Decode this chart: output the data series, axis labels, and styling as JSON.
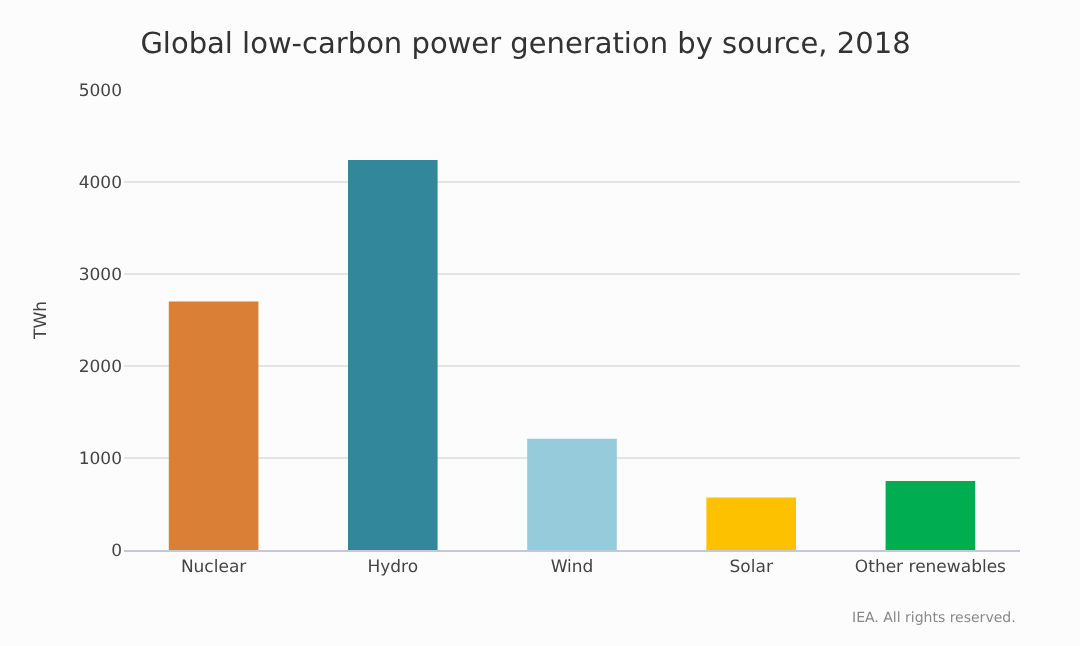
{
  "chart_data": {
    "type": "bar",
    "title": "Global low-carbon power generation by source, 2018",
    "ylabel": "TWh",
    "categories": [
      "Nuclear",
      "Hydro",
      "Wind",
      "Solar",
      "Other renewables"
    ],
    "values": [
      2700,
      4240,
      1210,
      570,
      750
    ],
    "colors": [
      "#d97f36",
      "#32879b",
      "#96cbdc",
      "#fec100",
      "#00ad50"
    ],
    "ylim": [
      0,
      5000
    ],
    "yticks": [
      0,
      1000,
      2000,
      3000,
      4000,
      5000
    ],
    "grid": "y",
    "annotations": [
      "IEA. All rights reserved."
    ]
  }
}
